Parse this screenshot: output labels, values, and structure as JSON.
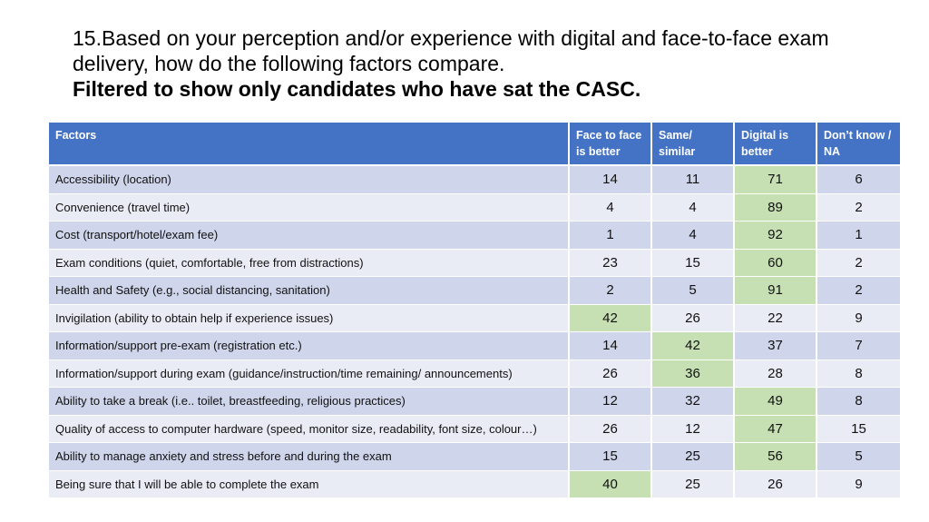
{
  "title": {
    "line1": "15.Based on your perception and/or experience with digital and face-to-face exam",
    "line2": "delivery, how do the following factors compare.",
    "line3": "Filtered to show only candidates who have sat the CASC."
  },
  "colors": {
    "header": "#4472c4",
    "row_dark": "#cfd5ea",
    "row_light": "#e9ebf5",
    "highlight": "#c6e0b4"
  },
  "table": {
    "headers": [
      "Factors",
      "Face to face is better",
      "Same/ similar",
      "Digital is better",
      "Don’t know / NA"
    ],
    "rows": [
      {
        "factor": "Accessibility (location)",
        "values": [
          "14",
          "11",
          "71",
          "6"
        ],
        "highlight": 2
      },
      {
        "factor": "Convenience (travel time)",
        "values": [
          "4",
          "4",
          "89",
          "2"
        ],
        "highlight": 2
      },
      {
        "factor": "Cost (transport/hotel/exam fee)",
        "values": [
          "1",
          "4",
          "92",
          "1"
        ],
        "highlight": 2
      },
      {
        "factor": "Exam conditions (quiet, comfortable, free from distractions)",
        "values": [
          "23",
          "15",
          "60",
          "2"
        ],
        "highlight": 2
      },
      {
        "factor": "Health and Safety (e.g., social distancing, sanitation)",
        "values": [
          "2",
          "5",
          "91",
          "2"
        ],
        "highlight": 2
      },
      {
        "factor": "Invigilation (ability to obtain help if experience issues)",
        "values": [
          "42",
          "26",
          "22",
          "9"
        ],
        "highlight": 0
      },
      {
        "factor": "Information/support pre-exam (registration etc.)",
        "values": [
          "14",
          "42",
          "37",
          "7"
        ],
        "highlight": 1
      },
      {
        "factor": "Information/support during exam (guidance/instruction/time remaining/ announcements)",
        "values": [
          "26",
          "36",
          "28",
          "8"
        ],
        "highlight": 1
      },
      {
        "factor": "Ability to take a break (i.e.. toilet, breastfeeding, religious practices)",
        "values": [
          "12",
          "32",
          "49",
          "8"
        ],
        "highlight": 2
      },
      {
        "factor": "Quality of access to computer hardware (speed, monitor size, readability, font size, colour…)",
        "values": [
          "26",
          "12",
          "47",
          "15"
        ],
        "highlight": 2
      },
      {
        "factor": "Ability to manage anxiety and stress before and during the exam",
        "values": [
          "15",
          "25",
          "56",
          "5"
        ],
        "highlight": 2
      },
      {
        "factor": "Being sure that I will be able to complete the exam",
        "values": [
          "40",
          "25",
          "26",
          "9"
        ],
        "highlight": 0
      }
    ]
  }
}
